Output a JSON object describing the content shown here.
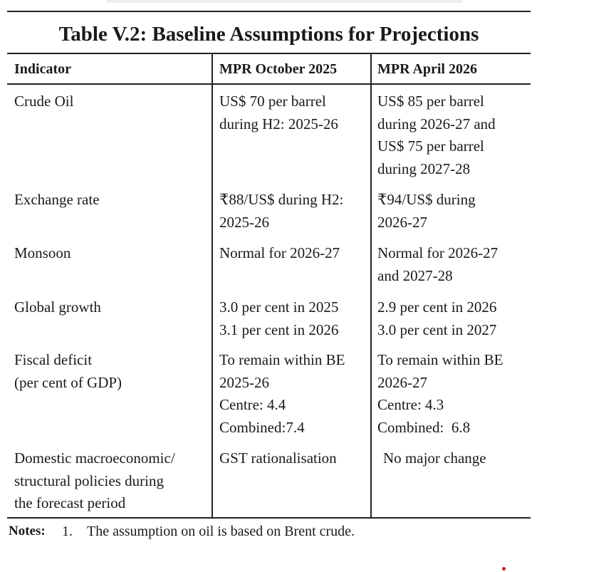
{
  "table": {
    "title": "Table V.2: Baseline Assumptions for Projections",
    "header": [
      "Indicator",
      "MPR October 2025",
      "MPR April 2026"
    ],
    "rows": [
      [
        [
          "Crude Oil"
        ],
        [
          "US$ 70 per barrel",
          "during H2: 2025-26"
        ],
        [
          "US$ 85 per barrel",
          "during 2026-27 and",
          "US$ 75 per barrel",
          "during 2027-28"
        ]
      ],
      [
        [
          "Exchange rate"
        ],
        [
          "₹88/US$ during H2:",
          "2025-26"
        ],
        [
          "₹94/US$ during",
          "2026-27"
        ]
      ],
      [
        [
          "Monsoon"
        ],
        [
          "Normal for 2026-27"
        ],
        [
          "Normal for 2026-27",
          "and 2027-28"
        ]
      ],
      [
        [
          "Global growth"
        ],
        [
          "3.0 per cent in 2025",
          "3.1 per cent in 2026"
        ],
        [
          "2.9 per cent in 2026",
          "3.0 per cent in 2027"
        ]
      ],
      [
        [
          "Fiscal deficit",
          "(per cent of GDP)"
        ],
        [
          "To remain within BE",
          "2025-26",
          "Centre: 4.4",
          "Combined:7.4"
        ],
        [
          "To remain within BE",
          "2026-27",
          "Centre: 4.3",
          "Combined:  6.8"
        ]
      ],
      [
        [
          "Domestic macroeconomic/",
          "structural policies during",
          "the forecast period"
        ],
        [
          "GST rationalisation"
        ],
        [
          "No major change"
        ]
      ]
    ],
    "notes": {
      "label": "Notes:",
      "number": "1.",
      "text": "The assumption on oil is based on Brent crude."
    }
  }
}
